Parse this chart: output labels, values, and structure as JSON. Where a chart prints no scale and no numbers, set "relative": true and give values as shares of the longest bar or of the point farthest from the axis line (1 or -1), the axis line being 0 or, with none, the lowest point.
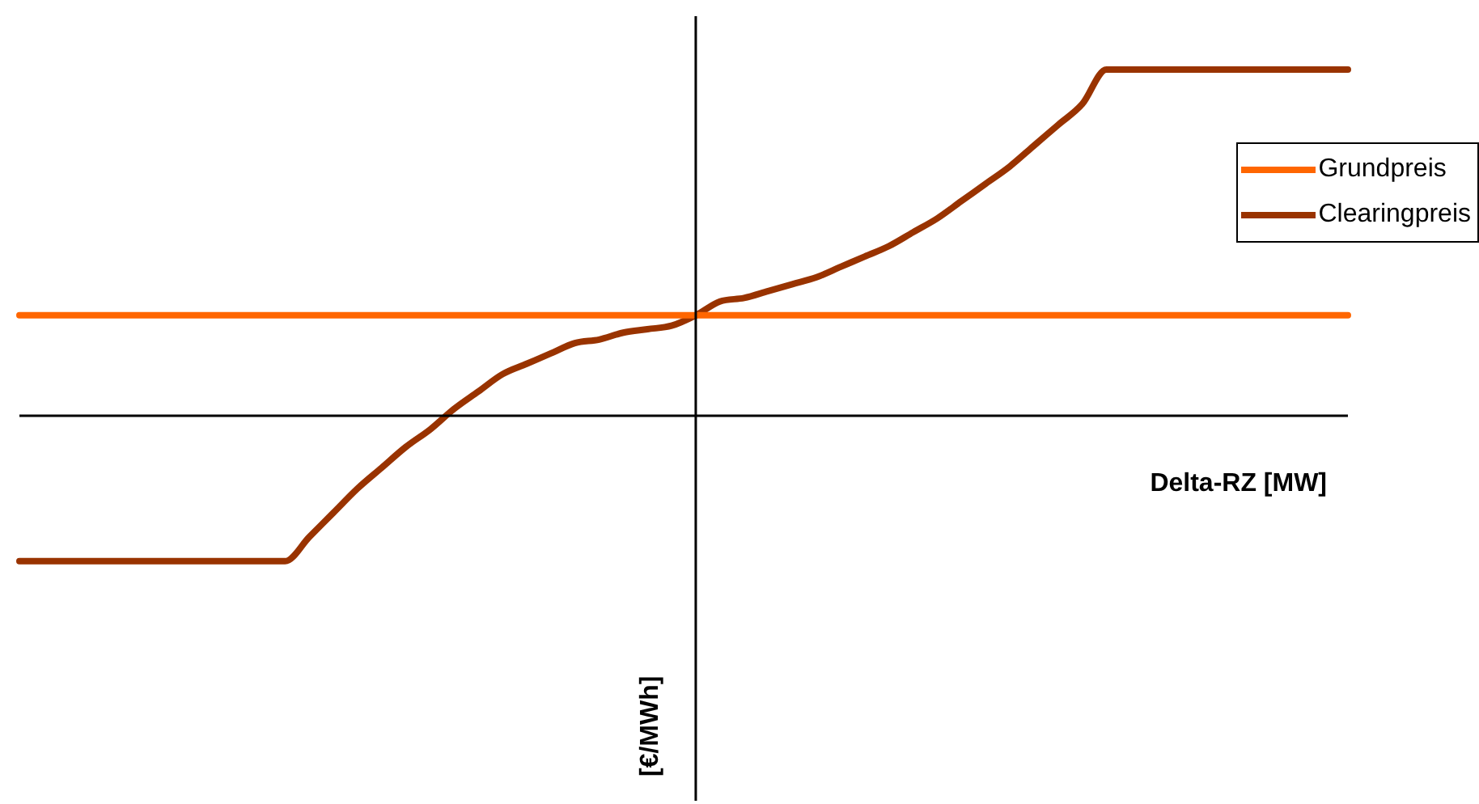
{
  "chart_data": {
    "type": "line",
    "relative": true,
    "xlabel": "Delta-RZ [MW]",
    "annotations": [
      "[€/MWh]"
    ],
    "legend": "top right",
    "grid": false,
    "marker": "none",
    "line_style": "solid",
    "categories": [
      null,
      null,
      null,
      null,
      null,
      null,
      null,
      null,
      null,
      null,
      null,
      null,
      null,
      null,
      null,
      null,
      null,
      null,
      null,
      null,
      null,
      null,
      null,
      null,
      null,
      null,
      null,
      null,
      null,
      null,
      null,
      null,
      null,
      null,
      null,
      null,
      null,
      null,
      null,
      null,
      null,
      null,
      null,
      null,
      null,
      null,
      null,
      null,
      null,
      null,
      null,
      null,
      null,
      null,
      null,
      null
    ],
    "series": [
      {
        "name": "Grundpreis",
        "color": "#ff6600",
        "values": [
          0.29,
          0.29,
          0.29,
          0.29,
          0.29,
          0.29,
          0.29,
          0.29,
          0.29,
          0.29,
          0.29,
          0.29,
          0.29,
          0.29,
          0.29,
          0.29,
          0.29,
          0.29,
          0.29,
          0.29,
          0.29,
          0.29,
          0.29,
          0.29,
          0.29,
          0.29,
          0.29,
          0.29,
          0.29,
          0.29,
          0.29,
          0.29,
          0.29,
          0.29,
          0.29,
          0.29,
          0.29,
          0.29,
          0.29,
          0.29,
          0.29,
          0.29,
          0.29,
          0.29,
          0.29,
          0.29,
          0.29,
          0.29,
          0.29,
          0.29,
          0.29,
          0.29,
          0.29,
          0.29,
          0.29,
          0.29
        ]
      },
      {
        "name": "Clearingpreis",
        "color": "#993300",
        "values": [
          -0.42,
          -0.42,
          -0.42,
          -0.42,
          -0.42,
          -0.42,
          -0.42,
          -0.42,
          -0.42,
          -0.42,
          -0.42,
          -0.42,
          -0.35,
          -0.28,
          -0.21,
          -0.15,
          -0.09,
          -0.04,
          0.02,
          0.07,
          0.12,
          0.15,
          0.18,
          0.21,
          0.22,
          0.24,
          0.25,
          0.26,
          0.29,
          0.33,
          0.34,
          0.36,
          0.38,
          0.4,
          0.43,
          0.46,
          0.49,
          0.53,
          0.57,
          0.62,
          0.67,
          0.72,
          0.78,
          0.84,
          0.9,
          1,
          1,
          1,
          1,
          1,
          1,
          1,
          1,
          1,
          1,
          1
        ]
      }
    ]
  }
}
